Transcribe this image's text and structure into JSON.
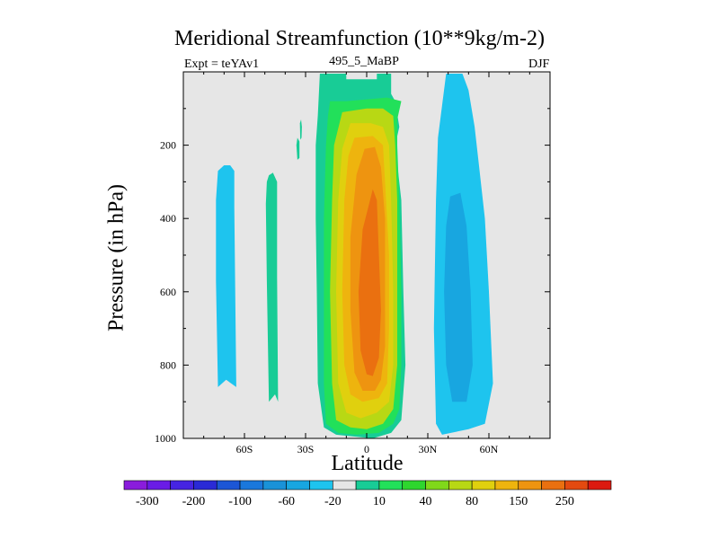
{
  "chart_data": {
    "type": "contour",
    "title": "Meridional Streamfunction (10**9kg/m-2)",
    "left_label": "Expt = teYAv1",
    "center_label": "495_5_MaBP",
    "right_label": "DJF",
    "xlabel": "Latitude",
    "ylabel": "Pressure (in hPa)",
    "xlim": [
      -90,
      90
    ],
    "ylim": [
      1000,
      0
    ],
    "x_ticks": [
      {
        "value": -60,
        "label": "60S"
      },
      {
        "value": -30,
        "label": "30S"
      },
      {
        "value": 0,
        "label": "0"
      },
      {
        "value": 30,
        "label": "30N"
      },
      {
        "value": 60,
        "label": "60N"
      }
    ],
    "y_ticks": [
      {
        "value": 200,
        "label": "200"
      },
      {
        "value": 400,
        "label": "400"
      },
      {
        "value": 600,
        "label": "600"
      },
      {
        "value": 800,
        "label": "800"
      },
      {
        "value": 1000,
        "label": "1000"
      }
    ],
    "colorbar": {
      "colors": [
        "#8a1cdc",
        "#6a1ce6",
        "#4624e2",
        "#2a2ad6",
        "#1c56d6",
        "#1a78dc",
        "#1a92d8",
        "#18a6e0",
        "#1ec4ee",
        "#e6e6e6",
        "#18cc96",
        "#22e05a",
        "#2ed62e",
        "#80d81a",
        "#b8d814",
        "#e0d00e",
        "#eeb40e",
        "#ee9410",
        "#ea7010",
        "#e44a10",
        "#dc1a10"
      ],
      "labels": [
        {
          "after_box": 1,
          "text": "-300"
        },
        {
          "after_box": 3,
          "text": "-200"
        },
        {
          "after_box": 5,
          "text": "-100"
        },
        {
          "after_box": 7,
          "text": "-60"
        },
        {
          "after_box": 9,
          "text": "-20"
        },
        {
          "after_box": 11,
          "text": "10"
        },
        {
          "after_box": 13,
          "text": "40"
        },
        {
          "after_box": 15,
          "text": "80"
        },
        {
          "after_box": 17,
          "text": "150"
        },
        {
          "after_box": 19,
          "text": "250"
        }
      ]
    },
    "regions": [
      {
        "name": "band-60s",
        "level": 1,
        "color": "#1ec4ee",
        "points": [
          [
            -73,
            270
          ],
          [
            -70,
            255
          ],
          [
            -67,
            255
          ],
          [
            -65,
            270
          ],
          [
            -65,
            370
          ],
          [
            -64,
            860
          ],
          [
            -69,
            840
          ],
          [
            -73,
            860
          ],
          [
            -74,
            570
          ],
          [
            -74,
            350
          ]
        ]
      },
      {
        "name": "band-45s",
        "level": 1,
        "color": "#18cc96",
        "points": [
          [
            -49,
            300
          ],
          [
            -48,
            282
          ],
          [
            -46,
            275
          ],
          [
            -44,
            300
          ],
          [
            -44,
            560
          ],
          [
            -43.5,
            900
          ],
          [
            -45,
            880
          ],
          [
            -48,
            900
          ],
          [
            -49,
            570
          ],
          [
            -49.5,
            360
          ]
        ]
      },
      {
        "name": "streak-35s",
        "level": 1,
        "color": "#18cc96",
        "points": [
          [
            -34.5,
            200
          ],
          [
            -34,
            180
          ],
          [
            -33,
            190
          ],
          [
            -33,
            235
          ],
          [
            -34,
            240
          ]
        ]
      },
      {
        "name": "streak-33s",
        "level": 1,
        "color": "#18cc96",
        "points": [
          [
            -32.8,
            140
          ],
          [
            -32.2,
            130
          ],
          [
            -31.8,
            150
          ],
          [
            -32,
            180
          ],
          [
            -32.6,
            185
          ]
        ]
      },
      {
        "name": "hadley-south-weak",
        "level": 1,
        "color": "#1ec4ee",
        "points": [
          [
            39,
            5
          ],
          [
            47,
            5
          ],
          [
            50,
            50
          ],
          [
            53,
            150
          ],
          [
            55,
            250
          ],
          [
            58,
            400
          ],
          [
            60,
            600
          ],
          [
            62,
            850
          ],
          [
            58,
            960
          ],
          [
            50,
            975
          ],
          [
            37,
            990
          ],
          [
            34,
            960
          ],
          [
            33,
            700
          ],
          [
            34,
            350
          ],
          [
            35,
            180
          ]
        ]
      },
      {
        "name": "hadley-south-strong",
        "level": 2,
        "color": "#18a6e0",
        "points": [
          [
            41,
            340
          ],
          [
            46,
            330
          ],
          [
            49,
            420
          ],
          [
            51,
            600
          ],
          [
            52,
            800
          ],
          [
            49,
            900
          ],
          [
            42,
            900
          ],
          [
            39,
            800
          ],
          [
            38,
            600
          ],
          [
            39,
            420
          ]
        ]
      },
      {
        "name": "hadley-north-10",
        "level": 1,
        "color": "#18cc96",
        "points": [
          [
            -23,
            5
          ],
          [
            -10,
            5
          ],
          [
            -10,
            20
          ],
          [
            5,
            20
          ],
          [
            5,
            5
          ],
          [
            12,
            5
          ],
          [
            12,
            60
          ],
          [
            14,
            80
          ],
          [
            16,
            150
          ],
          [
            14,
            200
          ],
          [
            17,
            350
          ],
          [
            18,
            600
          ],
          [
            19,
            800
          ],
          [
            17,
            950
          ],
          [
            12,
            985
          ],
          [
            3,
            1000
          ],
          [
            -15,
            990
          ],
          [
            -21,
            970
          ],
          [
            -24,
            850
          ],
          [
            -24.5,
            600
          ],
          [
            -25,
            400
          ],
          [
            -25,
            200
          ],
          [
            -24,
            120
          ]
        ]
      },
      {
        "name": "hadley-north-40",
        "level": 2,
        "color": "#22e05a",
        "points": [
          [
            -18,
            80
          ],
          [
            -10,
            80
          ],
          [
            0,
            75
          ],
          [
            10,
            70
          ],
          [
            17,
            80
          ],
          [
            15,
            130
          ],
          [
            15,
            200
          ],
          [
            16,
            350
          ],
          [
            17,
            600
          ],
          [
            17,
            800
          ],
          [
            16,
            920
          ],
          [
            13,
            960
          ],
          [
            6,
            985
          ],
          [
            -5,
            990
          ],
          [
            -14,
            985
          ],
          [
            -20,
            960
          ],
          [
            -21,
            850
          ],
          [
            -21,
            600
          ],
          [
            -21,
            400
          ],
          [
            -20,
            200
          ],
          [
            -19,
            120
          ]
        ]
      },
      {
        "name": "hadley-north-80",
        "level": 3,
        "color": "#b8d814",
        "points": [
          [
            -12,
            110
          ],
          [
            0,
            100
          ],
          [
            8,
            100
          ],
          [
            13,
            120
          ],
          [
            14,
            200
          ],
          [
            15,
            350
          ],
          [
            15,
            600
          ],
          [
            15,
            800
          ],
          [
            13,
            920
          ],
          [
            8,
            960
          ],
          [
            0,
            975
          ],
          [
            -8,
            970
          ],
          [
            -15,
            950
          ],
          [
            -17,
            850
          ],
          [
            -18,
            600
          ],
          [
            -17,
            350
          ],
          [
            -16,
            200
          ]
        ]
      },
      {
        "name": "hadley-north-100",
        "level": 4,
        "color": "#e0d00e",
        "points": [
          [
            -8,
            140
          ],
          [
            2,
            140
          ],
          [
            8,
            150
          ],
          [
            11,
            200
          ],
          [
            12,
            350
          ],
          [
            13,
            600
          ],
          [
            13,
            800
          ],
          [
            11,
            900
          ],
          [
            5,
            930
          ],
          [
            -3,
            945
          ],
          [
            -10,
            930
          ],
          [
            -14,
            850
          ],
          [
            -15,
            600
          ],
          [
            -14,
            350
          ],
          [
            -12,
            210
          ]
        ]
      },
      {
        "name": "hadley-north-150",
        "level": 5,
        "color": "#eeb40e",
        "points": [
          [
            -6,
            180
          ],
          [
            3,
            175
          ],
          [
            8,
            200
          ],
          [
            9,
            300
          ],
          [
            11,
            500
          ],
          [
            11,
            700
          ],
          [
            10,
            850
          ],
          [
            6,
            890
          ],
          [
            -2,
            900
          ],
          [
            -8,
            880
          ],
          [
            -11,
            800
          ],
          [
            -12,
            600
          ],
          [
            -11,
            350
          ],
          [
            -9,
            230
          ]
        ]
      },
      {
        "name": "hadley-north-200",
        "level": 6,
        "color": "#ee9410",
        "points": [
          [
            -1,
            210
          ],
          [
            4,
            205
          ],
          [
            7,
            260
          ],
          [
            9,
            400
          ],
          [
            9,
            600
          ],
          [
            9,
            750
          ],
          [
            7,
            840
          ],
          [
            4,
            870
          ],
          [
            -2,
            870
          ],
          [
            -6,
            820
          ],
          [
            -8,
            650
          ],
          [
            -8,
            450
          ],
          [
            -5,
            280
          ]
        ]
      },
      {
        "name": "hadley-north-250",
        "level": 7,
        "color": "#ea7010",
        "points": [
          [
            3,
            320
          ],
          [
            5,
            350
          ],
          [
            6,
            500
          ],
          [
            7,
            650
          ],
          [
            6,
            780
          ],
          [
            3,
            830
          ],
          [
            0,
            825
          ],
          [
            -3,
            760
          ],
          [
            -4,
            600
          ],
          [
            -2,
            430
          ]
        ]
      }
    ]
  }
}
